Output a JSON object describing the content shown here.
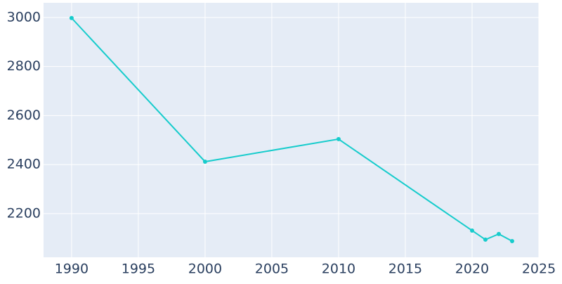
{
  "chart_data": {
    "type": "line",
    "x": [
      1990,
      2000,
      2010,
      2020,
      2021,
      2022,
      2023
    ],
    "series": [
      {
        "color": "#17cccc",
        "values": [
          2998,
          2412,
          2504,
          2131,
          2094,
          2117,
          2088
        ]
      }
    ],
    "xlim": [
      1987.9,
      2025
    ],
    "xticks": [
      1990,
      1995,
      2000,
      2005,
      2010,
      2015,
      2020,
      2025
    ],
    "ylim": [
      2022,
      3060
    ],
    "yticks": [
      2200,
      2400,
      2600,
      2800,
      3000
    ],
    "grid": true,
    "background": "#e5ecf6"
  }
}
